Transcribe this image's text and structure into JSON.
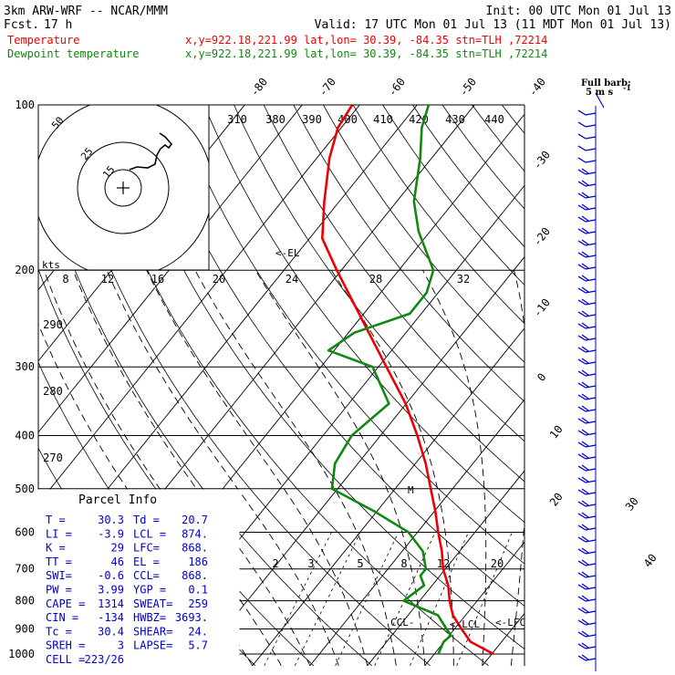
{
  "header": {
    "model": "3km ARW-WRF -- NCAR/MMM",
    "init": "Init: 00 UTC Mon 01 Jul 13",
    "fcst_label": "Fcst.",
    "fcst_value": "17 h",
    "valid": "Valid: 17 UTC Mon 01 Jul 13 (11 MDT Mon 01 Jul 13)"
  },
  "colors": {
    "temperature": "#ee0000",
    "dewpoint": "#118811",
    "barbs": "#0000cc",
    "text": "#000000"
  },
  "chart_data": {
    "type": "line",
    "title": "",
    "series": [
      {
        "name": "Temperature",
        "location": "x,y=922.18,221.99   lat,lon= 30.39, -84.35   stn=TLH ,72214",
        "p": [
          1000,
          950,
          900,
          850,
          800,
          750,
          700,
          650,
          600,
          550,
          500,
          450,
          400,
          350,
          300,
          250,
          200,
          175,
          150,
          125,
          110,
          100
        ],
        "t": [
          30.3,
          24.6,
          21.2,
          17.8,
          15.2,
          12.8,
          9.6,
          6.9,
          3.6,
          0.2,
          -3.8,
          -8.2,
          -13.6,
          -20.1,
          -28.6,
          -38.6,
          -50.8,
          -57.8,
          -62.6,
          -67.8,
          -70.6,
          -71.3
        ]
      },
      {
        "name": "Dewpoint temperature",
        "location": "x,y=922.18,221.99   lat,lon= 30.39, -84.35   stn=TLH ,72214",
        "p": [
          1000,
          950,
          925,
          900,
          850,
          800,
          750,
          720,
          700,
          650,
          600,
          550,
          500,
          450,
          400,
          350,
          300,
          280,
          260,
          240,
          220,
          200,
          170,
          150,
          125,
          110,
          100
        ],
        "t": [
          20.7,
          19.9,
          20.3,
          18.6,
          15.2,
          7.2,
          8.6,
          6.6,
          6.6,
          3.6,
          -1.6,
          -10.4,
          -21.0,
          -24.0,
          -25.0,
          -23.0,
          -31.0,
          -41.0,
          -39.0,
          -32.0,
          -32.0,
          -34.0,
          -42.0,
          -47.0,
          -52.0,
          -56.0,
          -58.0
        ]
      }
    ],
    "y_axis": {
      "variable": "pressure (hPa)",
      "scale": "log",
      "ylim": [
        1050,
        100
      ],
      "ticks": [
        100,
        200,
        300,
        400,
        500,
        600,
        700,
        800,
        900,
        1000
      ]
    },
    "isotherm_labels": [
      "-80",
      "-70",
      "-60",
      "-50",
      "-40",
      "-30",
      "-20",
      "-10",
      "0",
      "10",
      "20",
      "30",
      "40"
    ],
    "isotherm_values": [
      -80,
      -70,
      -60,
      -50,
      -40,
      -30,
      -20,
      -10,
      0,
      10,
      20,
      30,
      40
    ],
    "theta_labels": [
      "310",
      "380",
      "390",
      "400",
      "410",
      "420",
      "430",
      "440"
    ],
    "mixing_ratio_top_labels": [
      "8",
      "12",
      "16",
      "20",
      "24",
      "28",
      "32"
    ],
    "mixing_ratio_low_labels": [
      "2",
      "3",
      "5",
      "8",
      "12",
      "20"
    ],
    "left_theta_labels": [
      "290",
      "280",
      "270"
    ],
    "markers": {
      "el": "<-EL",
      "ccl": "CCL-",
      "lcl": "<-LCL",
      "lfc": "<-LFC",
      "m": "M"
    },
    "barb_legend": {
      "title": "Full barb:",
      "value": "5 m s",
      "exponent": "-1"
    },
    "hodograph": {
      "units": "kts",
      "ring_labels": [
        "50",
        "25",
        "15"
      ]
    },
    "parcel_info": {
      "title": "Parcel Info",
      "rows": [
        [
          "T  =",
          "30.3",
          "Td =",
          "20.7"
        ],
        [
          "LI =",
          "-3.9",
          "LCL =",
          "874."
        ],
        [
          "K  =",
          "29",
          "LFC=",
          "868."
        ],
        [
          "TT =",
          "46",
          "EL =",
          "186"
        ],
        [
          "SWI=",
          "-0.6",
          "CCL=",
          "868."
        ],
        [
          "PW =",
          "3.99",
          "YGP =",
          "0.1"
        ],
        [
          "CAPE =",
          "1314",
          "SWEAT=",
          "259"
        ],
        [
          "CIN =",
          "-134",
          "HWBZ=",
          "3693."
        ],
        [
          "Tc =",
          "30.4",
          "SHEAR=",
          "24."
        ],
        [
          "SREH =",
          "3",
          "LAPSE=",
          "5.7"
        ],
        [
          "CELL =",
          "223/26",
          "",
          ""
        ]
      ]
    }
  }
}
